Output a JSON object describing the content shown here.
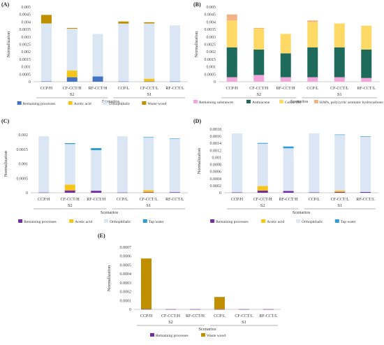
{
  "chart_data": [
    {
      "panel": "(A)",
      "type": "bar",
      "stacked": true,
      "categories": [
        "CCP/H",
        "CF-CCT/H",
        "RF-CCT/H",
        "CCP/L",
        "CF-CCT/L",
        "RF-CCT/L"
      ],
      "groups": [
        {
          "label": "S2",
          "span": [
            0,
            2
          ]
        },
        {
          "label": "S1",
          "span": [
            3,
            5
          ]
        }
      ],
      "xlabel": "Scenarios",
      "ylabel": "Normalization",
      "ylim": [
        0,
        0.005
      ],
      "yticks": [
        0,
        0.0005,
        0.001,
        0.0015,
        0.002,
        0.0025,
        0.003,
        0.0035,
        0.004,
        0.0045,
        0.005
      ],
      "ytick_labels": [
        "0",
        "0.0005",
        "0.001",
        "0.0015",
        "0.002",
        "0.0025",
        "0.003",
        "0.0035",
        "0.004",
        "0.0045",
        "0.005"
      ],
      "legend_position": "bottom",
      "series": [
        {
          "name": "Remaining processes",
          "color": "#4472c4",
          "values": [
            3e-05,
            0.0003,
            0.00035,
            2e-05,
            2e-05,
            2e-05
          ]
        },
        {
          "name": "Acetic acid",
          "color": "#f5c518",
          "values": [
            0,
            0.00045,
            0,
            0,
            0.00018,
            0
          ]
        },
        {
          "name": "Orthophthalic",
          "color": "#dae6f3",
          "values": [
            0.00387,
            0.0028,
            0.00285,
            0.00387,
            0.0037,
            0.00375
          ]
        },
        {
          "name": "Waste wood",
          "color": "#bf8f00",
          "values": [
            0.00057,
            5e-05,
            0,
            0.00014,
            8e-05,
            0
          ]
        }
      ]
    },
    {
      "panel": "(B)",
      "type": "bar",
      "stacked": true,
      "categories": [
        "CCP/H",
        "CF-CCT/H",
        "RF-CCT/H",
        "CCP/L",
        "CF-CCT/L",
        "RF-CCT/L"
      ],
      "groups": [
        {
          "label": "S2",
          "span": [
            0,
            2
          ]
        },
        {
          "label": "S1",
          "span": [
            3,
            5
          ]
        }
      ],
      "xlabel": "Scenarios",
      "ylabel": "Normalization",
      "ylim": [
        0,
        0.005
      ],
      "yticks": [
        0,
        0.0005,
        0.001,
        0.0015,
        0.002,
        0.0025,
        0.003,
        0.0035,
        0.004,
        0.0045,
        0.005
      ],
      "ytick_labels": [
        "0",
        "0.0005",
        "0.001",
        "0.0015",
        "0.002",
        "0.0025",
        "0.003",
        "0.0035",
        "0.004",
        "0.0045",
        "0.005"
      ],
      "legend_position": "bottom",
      "series": [
        {
          "name": "Remaining substances",
          "color": "#f4a6dc",
          "values": [
            0.0003,
            0.00045,
            0.0003,
            0.0003,
            0.0003,
            0.00025
          ]
        },
        {
          "name": "Anthracene",
          "color": "#1e6b5c",
          "values": [
            0.002,
            0.0017,
            0.0016,
            0.002,
            0.002,
            0.0019
          ]
        },
        {
          "name": "Cobalt (II)",
          "color": "#ffd966",
          "values": [
            0.0018,
            0.0014,
            0.0013,
            0.0017,
            0.0016,
            0.0016
          ]
        },
        {
          "name": "HAPs, polycyclic aromatic hydrocarbons",
          "color": "#f4b183",
          "values": [
            0.0004,
            5e-05,
            0,
            0.0001,
            0,
            0
          ]
        }
      ]
    },
    {
      "panel": "(C)",
      "type": "bar",
      "stacked": true,
      "categories": [
        "CCP/H",
        "CF-CCT/H",
        "RF-CCT/H",
        "CCP/L",
        "CF-CCT/L",
        "RF-CCT/L"
      ],
      "groups": [
        {
          "label": "S2",
          "span": [
            0,
            2
          ]
        },
        {
          "label": "S1",
          "span": [
            3,
            5
          ]
        }
      ],
      "xlabel": "Scenarios",
      "ylabel": "Normalization",
      "ylim": [
        0,
        0.002
      ],
      "yticks": [
        0,
        0.0005,
        0.001,
        0.0015,
        0.002
      ],
      "ytick_labels": [
        "0",
        "0.0005",
        "0.001",
        "0.0015",
        "0.002"
      ],
      "legend_position": "bottom",
      "series": [
        {
          "name": "Remaining processes",
          "color": "#7030a0",
          "values": [
            1e-05,
            8e-05,
            7e-05,
            1e-05,
            2e-05,
            2e-05
          ]
        },
        {
          "name": "Acetic acid",
          "color": "#f5c518",
          "values": [
            0,
            0.0002,
            0,
            0,
            7e-05,
            0
          ]
        },
        {
          "name": "Orthophthalic",
          "color": "#dae6f3",
          "values": [
            0.00194,
            0.0014,
            0.0014,
            0.00194,
            0.00183,
            0.00184
          ]
        },
        {
          "name": "Tap water",
          "color": "#2e9bd6",
          "values": [
            0,
            3e-05,
            7e-05,
            0,
            1e-05,
            1e-05
          ]
        }
      ]
    },
    {
      "panel": "(D)",
      "type": "bar",
      "stacked": true,
      "categories": [
        "CCP/H",
        "CF-CCT/H",
        "RF-CCT/H",
        "CCP/L",
        "CF-CCT/L",
        "RF-CCT/L"
      ],
      "groups": [
        {
          "label": "S2",
          "span": [
            0,
            2
          ]
        },
        {
          "label": "S1",
          "span": [
            3,
            5
          ]
        }
      ],
      "xlabel": "Scenarios",
      "ylabel": "Normalization",
      "ylim": [
        0,
        0.0018
      ],
      "yticks": [
        0,
        0.0002,
        0.0004,
        0.0006,
        0.0008,
        0.001,
        0.0012,
        0.0014,
        0.0016,
        0.0018
      ],
      "ytick_labels": [
        "0",
        "0.0002",
        "0.0004",
        "0.0006",
        "0.0008",
        "0.001",
        "0.0012",
        "0.0014",
        "0.0016",
        "0.0018"
      ],
      "legend_position": "bottom",
      "series": [
        {
          "name": "Remaining processes",
          "color": "#7030a0",
          "values": [
            1e-05,
            6e-05,
            5e-05,
            1e-05,
            2e-05,
            2e-05
          ]
        },
        {
          "name": "Acetic acid",
          "color": "#f5c518",
          "values": [
            0,
            0.00013,
            0,
            0,
            4e-05,
            0
          ]
        },
        {
          "name": "Orthophthalic",
          "color": "#dae6f3",
          "values": [
            0.00167,
            0.0012,
            0.00121,
            0.00167,
            0.00158,
            0.00157
          ]
        },
        {
          "name": "Tap water",
          "color": "#2e9bd6",
          "values": [
            0,
            2e-05,
            5e-05,
            0,
            1e-05,
            1e-05
          ]
        }
      ]
    },
    {
      "panel": "(E)",
      "type": "bar",
      "stacked": true,
      "categories": [
        "CCP/H",
        "CF-CCT/H",
        "RF-CCT/H",
        "CCP/L",
        "CF-CCT/L",
        "RF-CCT/L"
      ],
      "groups": [
        {
          "label": "S2",
          "span": [
            0,
            2
          ]
        },
        {
          "label": "S1",
          "span": [
            3,
            5
          ]
        }
      ],
      "xlabel": "Scenarios",
      "ylabel": "Normalization",
      "ylim": [
        0,
        0.0007
      ],
      "yticks": [
        0,
        0.0001,
        0.0002,
        0.0003,
        0.0004,
        0.0005,
        0.0006,
        0.0007
      ],
      "ytick_labels": [
        "0",
        "0.0001",
        "0.0002",
        "0.0003",
        "0.0004",
        "0.0005",
        "0.0006",
        "0.0007"
      ],
      "legend_position": "bottom",
      "series": [
        {
          "name": "Remaining processes",
          "color": "#7030a0",
          "values": [
            3e-06,
            2e-06,
            2e-06,
            2e-06,
            2e-06,
            2e-06
          ]
        },
        {
          "name": "Waste wood",
          "color": "#bf8f00",
          "values": [
            0.00057,
            0,
            0,
            0.000138,
            0,
            0
          ]
        }
      ]
    }
  ]
}
